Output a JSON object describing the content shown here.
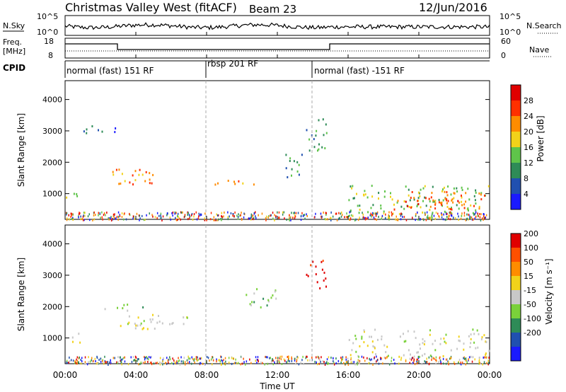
{
  "header": {
    "title": "Christmas Valley West (fitACF)",
    "beam": "Beam 23",
    "date": "12/Jun/2016"
  },
  "top_panel": {
    "left_label": "N.Sky",
    "right_label": "N.Search",
    "y_ticks": [
      "10^5",
      "10^0"
    ]
  },
  "freq_panel": {
    "left_label_1": "Freq.",
    "left_label_2": "[MHz]",
    "y_ticks_left": [
      "18",
      "8"
    ],
    "y_ticks_right": [
      "60",
      "0"
    ],
    "right_label": "Nave"
  },
  "cpid": {
    "label": "CPID",
    "segments": [
      {
        "name": "normal (fast) 151 RF",
        "start": 0.0
      },
      {
        "name": "rbsp 201 RF",
        "start": 8.0
      },
      {
        "name": "normal (fast) -151 RF",
        "start": 14.0
      }
    ]
  },
  "axes": {
    "xlabel": "Time UT",
    "ylabel": "Slant Range [km]",
    "x_ticks": [
      "00:00",
      "04:00",
      "08:00",
      "12:00",
      "16:00",
      "20:00",
      "00:00"
    ],
    "y_ticks": [
      "1000",
      "2000",
      "3000",
      "4000"
    ]
  },
  "power_scale": {
    "label": "Power [dB]",
    "ticks": [
      "4",
      "8",
      "12",
      "16",
      "20",
      "24",
      "28"
    ],
    "colors": [
      "#1a1aff",
      "#2050b0",
      "#2e8b57",
      "#5fc44a",
      "#f2d21a",
      "#ff8c00",
      "#ff3000",
      "#e00000"
    ]
  },
  "velocity_scale": {
    "label": "Velocity [m s⁻¹]",
    "ticks": [
      "200",
      "100",
      "50",
      "15",
      "-15",
      "-50",
      "-100",
      "-200"
    ],
    "colors": [
      "#1a1aff",
      "#2050b0",
      "#2e8b57",
      "#7ad13a",
      "#c8c8c8",
      "#f2d21a",
      "#ff8c00",
      "#ff5000",
      "#e00000"
    ]
  },
  "chart_data": {
    "type": "heatmap",
    "x_range_hours": [
      0,
      24
    ],
    "y_range_km": [
      180,
      4600
    ],
    "power_blobs": [
      {
        "t0": 0.0,
        "t1": 0.9,
        "r0": 850,
        "r1": 1200,
        "c": 3
      },
      {
        "t0": 2.6,
        "t1": 5.3,
        "r0": 1300,
        "r1": 1800,
        "c": 5
      },
      {
        "t0": 3.4,
        "t1": 5.0,
        "r0": 1350,
        "r1": 1550,
        "c": 6
      },
      {
        "t0": 1.0,
        "t1": 3.2,
        "r0": 2950,
        "r1": 3200,
        "c": 1
      },
      {
        "t0": 8.2,
        "t1": 11.0,
        "r0": 1250,
        "r1": 1450,
        "c": 5
      },
      {
        "t0": 12.2,
        "t1": 13.4,
        "r0": 1500,
        "r1": 2300,
        "c": 2
      },
      {
        "t0": 13.6,
        "t1": 14.8,
        "r0": 2400,
        "r1": 3500,
        "c": 2
      },
      {
        "t0": 16.0,
        "t1": 24.0,
        "r0": 400,
        "r1": 1300,
        "c": 3
      },
      {
        "t0": 18.5,
        "t1": 23.7,
        "r0": 500,
        "r1": 1100,
        "c": 5
      },
      {
        "t0": 19.2,
        "t1": 22.8,
        "r0": 550,
        "r1": 950,
        "c": 6
      }
    ],
    "velocity_blobs": [
      {
        "t0": 0.0,
        "t1": 0.9,
        "r0": 850,
        "r1": 1200,
        "c": 4
      },
      {
        "t0": 2.6,
        "t1": 5.3,
        "r0": 1300,
        "r1": 1800,
        "c": 4
      },
      {
        "t0": 4.0,
        "t1": 7.0,
        "r0": 1400,
        "r1": 1700,
        "c": 4
      },
      {
        "t0": 13.6,
        "t1": 14.8,
        "r0": 2600,
        "r1": 3500,
        "c": 8
      },
      {
        "t0": 16.0,
        "t1": 24.0,
        "r0": 400,
        "r1": 1300,
        "c": 4
      },
      {
        "t0": 2.0,
        "t1": 4.5,
        "r0": 1900,
        "r1": 2100,
        "c": 3
      },
      {
        "t0": 10.0,
        "t1": 12.0,
        "r0": 2000,
        "r1": 2600,
        "c": 3
      }
    ]
  }
}
